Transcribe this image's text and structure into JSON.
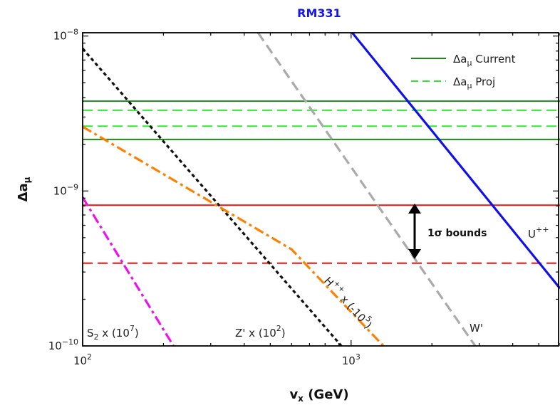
{
  "chart_data": {
    "type": "line",
    "title": "RM331",
    "xlabel": "v_x (GeV)",
    "ylabel": "Δa_μ",
    "xscale": "log",
    "yscale": "log",
    "xlim": [
      100,
      6000
    ],
    "ylim": [
      1e-10,
      1.05e-08
    ],
    "x_tick_labels": [
      "10^2",
      "10^3"
    ],
    "y_tick_labels": [
      "10^-10",
      "10^-9",
      "10^-8"
    ],
    "legend_position": "top-right",
    "legend": [
      {
        "label": "Δa_μ Current",
        "color": "#1a8a1a",
        "dash": "solid"
      },
      {
        "label": "Δa_μ Proj",
        "color": "#33e633",
        "dash": "dashed"
      }
    ],
    "bands": [
      {
        "name": "Δa_μ Current",
        "color": "#1a8a1a",
        "dash": "solid",
        "values": [
          3.8e-09,
          2.15e-09
        ]
      },
      {
        "name": "Δa_μ Proj",
        "color": "#33e633",
        "dash": "dashed",
        "values": [
          3.32e-09,
          2.62e-09
        ]
      },
      {
        "color": "#ee1111",
        "dash": "solid",
        "values": [
          8.1e-10
        ]
      },
      {
        "color": "#ee1111",
        "dash": "dashed",
        "values": [
          3.42e-10
        ]
      }
    ],
    "series": [
      {
        "name": "U⁺⁺",
        "color": "#1010ee",
        "dash": "solid",
        "points": [
          [
            1010,
            1.05e-08
          ],
          [
            6000,
            2.35e-10
          ]
        ]
      },
      {
        "name": "W'",
        "color": "#aaaaaa",
        "dash": "dashed",
        "points": [
          [
            450,
            1.05e-08
          ],
          [
            2900,
            1e-10
          ]
        ]
      },
      {
        "name": "Z' x (10²)",
        "color": "#111111",
        "dash": "dotted",
        "points": [
          [
            100,
            8.3e-09
          ],
          [
            920,
            1e-10
          ]
        ]
      },
      {
        "name": "H⁺⁺ x (-10⁵)",
        "color": "#ff8000",
        "dash": "dashdot",
        "points": [
          [
            100,
            2.6e-09
          ],
          [
            600,
            4.2e-10
          ],
          [
            1320,
            1e-10
          ]
        ]
      },
      {
        "name": "S₂ x (10⁷)",
        "color": "#ee11ee",
        "dash": "dashdot",
        "points": [
          [
            100,
            9.1e-10
          ],
          [
            218,
            1e-10
          ]
        ]
      }
    ],
    "annotations": {
      "sigma": "1σ bounds",
      "u": "U⁺⁺",
      "w": "W'",
      "z": "Z' x (10²)",
      "h": "H⁺⁺ x (-10⁵)",
      "s": "S₂ x (10⁷)"
    }
  }
}
